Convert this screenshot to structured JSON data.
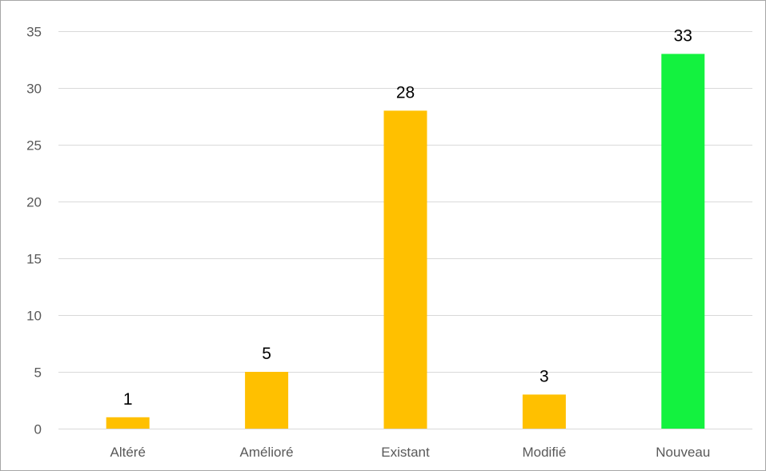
{
  "chart_data": {
    "type": "bar",
    "title": "",
    "xlabel": "",
    "ylabel": "",
    "categories": [
      "Altéré",
      "Amélioré",
      "Existant",
      "Modifié",
      "Nouveau"
    ],
    "values": [
      1,
      5,
      28,
      3,
      33
    ],
    "y_ticks": [
      "0",
      "5",
      "10",
      "15",
      "20",
      "25",
      "30",
      "35"
    ],
    "ylim": [
      0,
      35
    ],
    "grid": true,
    "legend": "none",
    "colors": [
      "#ffc000",
      "#ffc000",
      "#ffc000",
      "#ffc000",
      "#13f23f"
    ],
    "data_labels": [
      "1",
      "5",
      "28",
      "3",
      "33"
    ]
  }
}
